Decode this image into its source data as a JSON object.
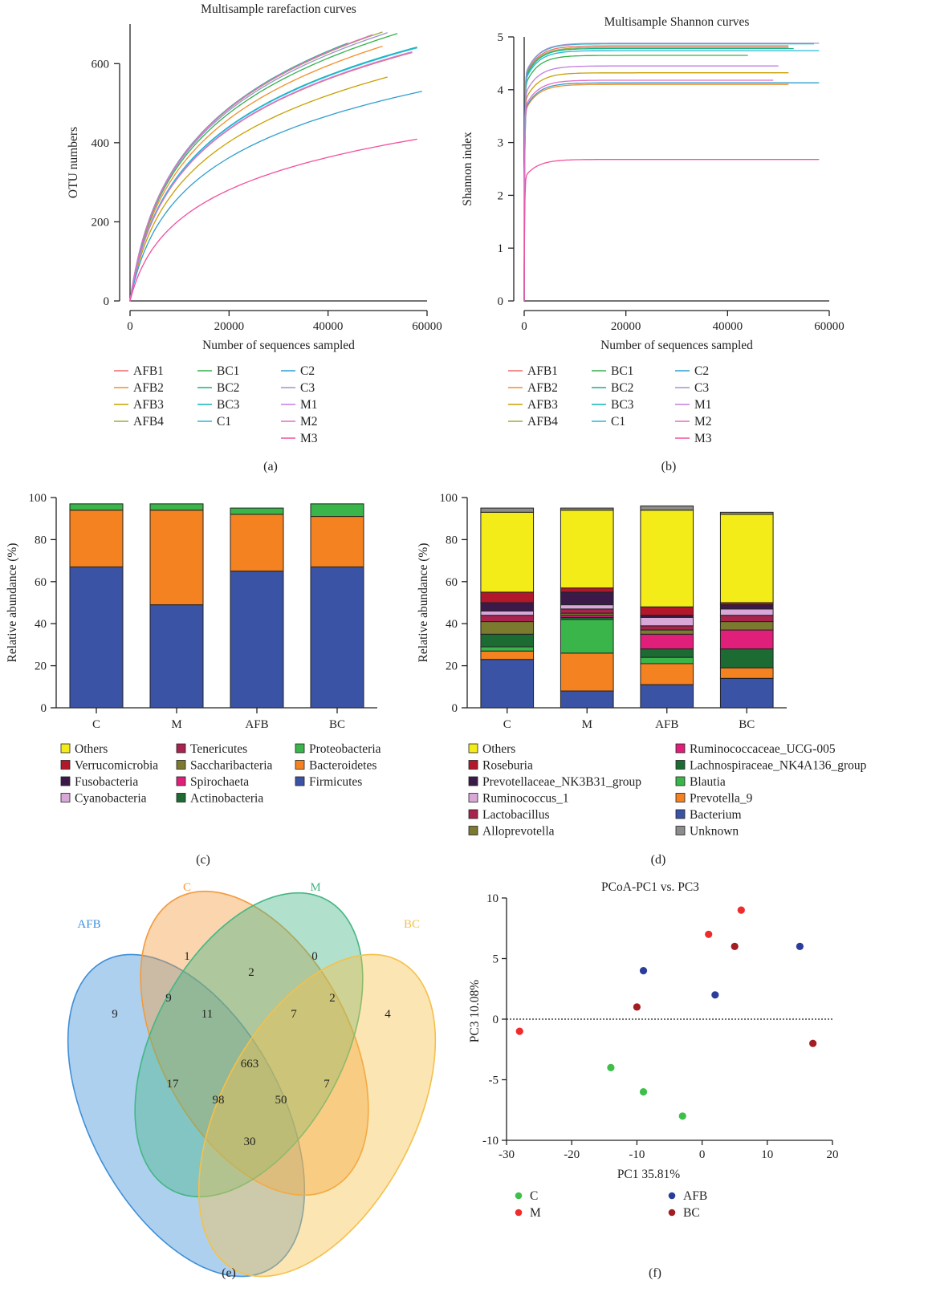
{
  "panel_labels": [
    "(a)",
    "(b)",
    "(c)",
    "(d)",
    "(e)",
    "(f)"
  ],
  "sample_colors": {
    "AFB1": "#f06a6a",
    "AFB2": "#f28e2b",
    "AFB3": "#c8a000",
    "AFB4": "#9aae3c",
    "BC1": "#33b24a",
    "BC2": "#1ab28a",
    "BC3": "#12b5b5",
    "C1": "#23b8d8",
    "C2": "#2e9fd0",
    "C3": "#9a95d6",
    "M1": "#c37fe0",
    "M2": "#e06fc8",
    "M3": "#f0509e"
  },
  "chart_data": [
    {
      "id": "a",
      "type": "line",
      "title": "Multisample rarefaction curves",
      "xlabel": "Number of sequences sampled",
      "ylabel": "OTU numbers",
      "xlim": [
        0,
        60000
      ],
      "ylim": [
        0,
        700
      ],
      "xticks": [
        0,
        20000,
        40000,
        60000
      ],
      "yticks": [
        0,
        200,
        400,
        600
      ],
      "legend_columns": [
        [
          "AFB1",
          "AFB2",
          "AFB3",
          "AFB4"
        ],
        [
          "BC1",
          "BC2",
          "BC3",
          "C1"
        ],
        [
          "C2",
          "C3",
          "M1",
          "M2",
          "M3"
        ]
      ],
      "series": [
        {
          "name": "AFB1",
          "x_end": 57000,
          "y_end": 628
        },
        {
          "name": "AFB2",
          "x_end": 51000,
          "y_end": 644
        },
        {
          "name": "AFB3",
          "x_end": 52000,
          "y_end": 566
        },
        {
          "name": "AFB4",
          "x_end": 51000,
          "y_end": 680
        },
        {
          "name": "BC1",
          "x_end": 54000,
          "y_end": 676
        },
        {
          "name": "BC2",
          "x_end": 44000,
          "y_end": 652
        },
        {
          "name": "BC3",
          "x_end": 58000,
          "y_end": 642
        },
        {
          "name": "C1",
          "x_end": 58000,
          "y_end": 640
        },
        {
          "name": "C2",
          "x_end": 59000,
          "y_end": 530
        },
        {
          "name": "C3",
          "x_end": 52000,
          "y_end": 678
        },
        {
          "name": "M1",
          "x_end": 57000,
          "y_end": 630
        },
        {
          "name": "M2",
          "x_end": 49000,
          "y_end": 673
        },
        {
          "name": "M3",
          "x_end": 58000,
          "y_end": 409
        }
      ]
    },
    {
      "id": "b",
      "type": "line",
      "title": "Multisample Shannon curves",
      "xlabel": "Number of sequences sampled",
      "ylabel": "Shannon index",
      "xlim": [
        0,
        60000
      ],
      "ylim": [
        0,
        5
      ],
      "xticks": [
        0,
        20000,
        40000,
        60000
      ],
      "yticks": [
        0,
        1,
        2,
        3,
        4,
        5
      ],
      "legend_columns": [
        [
          "AFB1",
          "AFB2",
          "AFB3",
          "AFB4"
        ],
        [
          "BC1",
          "BC2",
          "BC3",
          "C1"
        ],
        [
          "C2",
          "C3",
          "M1",
          "M2",
          "M3"
        ]
      ],
      "series": [
        {
          "name": "AFB1",
          "x_end": 52000,
          "y_end": 4.83
        },
        {
          "name": "AFB2",
          "x_end": 52000,
          "y_end": 4.1
        },
        {
          "name": "AFB3",
          "x_end": 52000,
          "y_end": 4.32
        },
        {
          "name": "AFB4",
          "x_end": 52000,
          "y_end": 4.8
        },
        {
          "name": "BC1",
          "x_end": 44000,
          "y_end": 4.65
        },
        {
          "name": "BC2",
          "x_end": 53000,
          "y_end": 4.78
        },
        {
          "name": "BC3",
          "x_end": 57000,
          "y_end": 4.87
        },
        {
          "name": "C1",
          "x_end": 58000,
          "y_end": 4.74
        },
        {
          "name": "C2",
          "x_end": 58000,
          "y_end": 4.13
        },
        {
          "name": "C3",
          "x_end": 58000,
          "y_end": 4.88
        },
        {
          "name": "M1",
          "x_end": 50000,
          "y_end": 4.45
        },
        {
          "name": "M2",
          "x_end": 49000,
          "y_end": 4.18
        },
        {
          "name": "M3",
          "x_end": 58000,
          "y_end": 2.68
        }
      ]
    },
    {
      "id": "c",
      "type": "bar",
      "stacked": true,
      "ylabel": "Relative abundance (%)",
      "ylim": [
        0,
        100
      ],
      "yticks": [
        0,
        20,
        40,
        60,
        80,
        100
      ],
      "categories": [
        "C",
        "M",
        "AFB",
        "BC"
      ],
      "series": [
        {
          "name": "Firmicutes",
          "color": "#3a53a4",
          "values": [
            67,
            49,
            65,
            67
          ]
        },
        {
          "name": "Bacteroidetes",
          "color": "#f58220",
          "values": [
            27,
            45,
            27,
            24
          ]
        },
        {
          "name": "Proteobacteria",
          "color": "#3ab54a",
          "values": [
            3,
            3,
            3,
            6
          ]
        },
        {
          "name": "Actinobacteria",
          "color": "#1c6b33",
          "values": [
            0,
            0,
            0,
            0
          ]
        },
        {
          "name": "Spirochaeta",
          "color": "#e01f7a",
          "values": [
            0,
            0,
            0,
            0
          ]
        },
        {
          "name": "Saccharibacteria",
          "color": "#7b7a2e",
          "values": [
            0,
            0,
            0,
            0
          ]
        },
        {
          "name": "Tenericutes",
          "color": "#a8234d",
          "values": [
            0,
            0,
            0,
            0
          ]
        },
        {
          "name": "Cyanobacteria",
          "color": "#d9a8d8",
          "values": [
            0,
            0,
            0,
            0
          ]
        },
        {
          "name": "Fusobacteria",
          "color": "#3b1a49",
          "values": [
            0,
            0,
            0,
            0
          ]
        },
        {
          "name": "Verrucomicrobia",
          "color": "#b3172b",
          "values": [
            0,
            0,
            0,
            0
          ]
        },
        {
          "name": "Others",
          "color": "#f3ec19",
          "values": [
            0,
            0,
            0,
            0
          ]
        }
      ],
      "legend_columns": [
        [
          [
            "Others",
            "#f3ec19"
          ],
          [
            "Verrucomicrobia",
            "#b3172b"
          ],
          [
            "Fusobacteria",
            "#3b1a49"
          ],
          [
            "Cyanobacteria",
            "#d9a8d8"
          ]
        ],
        [
          [
            "Tenericutes",
            "#a8234d"
          ],
          [
            "Saccharibacteria",
            "#7b7a2e"
          ],
          [
            "Spirochaeta",
            "#e01f7a"
          ],
          [
            "Actinobacteria",
            "#1c6b33"
          ]
        ],
        [
          [
            "Proteobacteria",
            "#3ab54a"
          ],
          [
            "Bacteroidetes",
            "#f58220"
          ],
          [
            "Firmicutes",
            "#3a53a4"
          ]
        ]
      ]
    },
    {
      "id": "d",
      "type": "bar",
      "stacked": true,
      "ylabel": "Relative abundance (%)",
      "ylim": [
        0,
        100
      ],
      "yticks": [
        0,
        20,
        40,
        60,
        80,
        100
      ],
      "categories": [
        "C",
        "M",
        "AFB",
        "BC"
      ],
      "series": [
        {
          "name": "Bacterium",
          "color": "#3a53a4",
          "values": [
            23,
            8,
            11,
            14
          ]
        },
        {
          "name": "Prevotella_9",
          "color": "#f58220",
          "values": [
            4,
            18,
            10,
            5
          ]
        },
        {
          "name": "Blautia",
          "color": "#3ab54a",
          "values": [
            2,
            16,
            3,
            0
          ]
        },
        {
          "name": "Lachnospiraceae_NK4A136_group",
          "color": "#1c6b33",
          "values": [
            6,
            1,
            4,
            9
          ]
        },
        {
          "name": "Ruminococcaceae_UCG-005",
          "color": "#e01f7a",
          "values": [
            0,
            1,
            7,
            9
          ]
        },
        {
          "name": "Alloprevotella",
          "color": "#7b7a2e",
          "values": [
            6,
            1,
            2,
            4
          ]
        },
        {
          "name": "Lactobacillus",
          "color": "#a8234d",
          "values": [
            3,
            2,
            2,
            3
          ]
        },
        {
          "name": "Ruminococcus_1",
          "color": "#d9a8d8",
          "values": [
            2,
            2,
            4,
            3
          ]
        },
        {
          "name": "Prevotellaceae_NK3B31_group",
          "color": "#3b1a49",
          "values": [
            4,
            6,
            1,
            2
          ]
        },
        {
          "name": "Roseburia",
          "color": "#b3172b",
          "values": [
            5,
            2,
            4,
            1
          ]
        },
        {
          "name": "Others",
          "color": "#f3ec19",
          "values": [
            38,
            37,
            46,
            42
          ]
        },
        {
          "name": "Unknown",
          "color": "#8c8c8c",
          "values": [
            2,
            1,
            2,
            1
          ]
        }
      ],
      "legend_columns": [
        [
          [
            "Others",
            "#f3ec19"
          ],
          [
            "Roseburia",
            "#b3172b"
          ],
          [
            "Prevotellaceae_NK3B31_group",
            "#3b1a49"
          ],
          [
            "Ruminococcus_1",
            "#d9a8d8"
          ],
          [
            "Lactobacillus",
            "#a8234d"
          ],
          [
            "Alloprevotella",
            "#7b7a2e"
          ]
        ],
        [
          [
            "Ruminococcaceae_UCG-005",
            "#e01f7a"
          ],
          [
            "Lachnospiraceae_NK4A136_group",
            "#1c6b33"
          ],
          [
            "Blautia",
            "#3ab54a"
          ],
          [
            "Prevotella_9",
            "#f58220"
          ],
          [
            "Bacterium",
            "#3a53a4"
          ],
          [
            "Unknown",
            "#8c8c8c"
          ]
        ]
      ]
    },
    {
      "id": "e",
      "type": "venn",
      "sets": [
        {
          "name": "AFB",
          "color": "#3e8fd8"
        },
        {
          "name": "C",
          "color": "#f39a3c"
        },
        {
          "name": "M",
          "color": "#45b685"
        },
        {
          "name": "BC",
          "color": "#f5c04a"
        }
      ],
      "regions": {
        "AFB": 9,
        "C": 1,
        "M": 0,
        "BC": 4,
        "AFB_C": 9,
        "C_M": 2,
        "M_BC": 2,
        "AFB_M": 17,
        "C_BC": 7,
        "AFB_BC": 30,
        "AFB_C_M": 11,
        "C_M_BC": 7,
        "AFB_M_BC": 98,
        "AFB_C_BC": 50,
        "all": 663
      }
    },
    {
      "id": "f",
      "type": "scatter",
      "title": "PCoA-PC1 vs. PC3",
      "xlabel": "PC1 35.81%",
      "ylabel": "PC3 10.08%",
      "xlim": [
        -30,
        20
      ],
      "ylim": [
        -10,
        10
      ],
      "xticks": [
        -30,
        -20,
        -10,
        0,
        10,
        20
      ],
      "yticks": [
        -10,
        -5,
        0,
        5,
        10
      ],
      "series": [
        {
          "name": "C",
          "color": "#3cc04a",
          "points": [
            [
              -14,
              -4
            ],
            [
              -9,
              -6
            ],
            [
              -3,
              -8
            ]
          ]
        },
        {
          "name": "M",
          "color": "#ef2b2b",
          "points": [
            [
              -28,
              -1
            ],
            [
              1,
              7
            ],
            [
              6,
              9
            ]
          ]
        },
        {
          "name": "AFB",
          "color": "#2a3d9a",
          "points": [
            [
              -9,
              4
            ],
            [
              2,
              2
            ],
            [
              15,
              6
            ]
          ]
        },
        {
          "name": "BC",
          "color": "#a11e22",
          "points": [
            [
              -10,
              1
            ],
            [
              5,
              6
            ],
            [
              17,
              -2
            ]
          ]
        }
      ]
    }
  ]
}
